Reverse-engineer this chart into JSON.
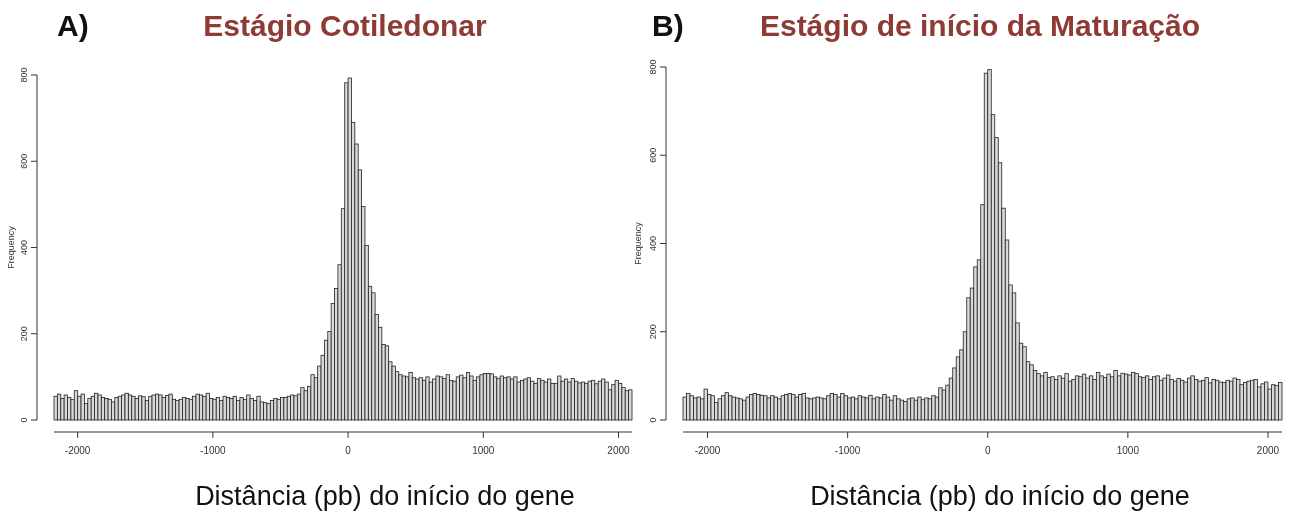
{
  "chart_data": [
    {
      "type": "histogram",
      "title": "Estágio Cotiledonar",
      "annotations": [
        "A)"
      ],
      "xlabel": "Distância (pb) do início do gene",
      "ylabel": "Frequency",
      "color": "#d9d9d9",
      "xlim": [
        -2175,
        2100
      ],
      "ylim": [
        0,
        800
      ],
      "xticks": [
        -2000,
        -1000,
        0,
        1000,
        2000
      ],
      "yticks": [
        0,
        200,
        400,
        600,
        800
      ],
      "bins": [
        -2175,
        -2150,
        -2125,
        -2100,
        -2075,
        -2050,
        -2025,
        -2000,
        -1975,
        -1950,
        -1925,
        -1900,
        -1875,
        -1850,
        -1825,
        -1800,
        -1775,
        -1750,
        -1725,
        -1700,
        -1675,
        -1650,
        -1625,
        -1600,
        -1575,
        -1550,
        -1525,
        -1500,
        -1475,
        -1450,
        -1425,
        -1400,
        -1375,
        -1350,
        -1325,
        -1300,
        -1275,
        -1250,
        -1225,
        -1200,
        -1175,
        -1150,
        -1125,
        -1100,
        -1075,
        -1050,
        -1025,
        -1000,
        -975,
        -950,
        -925,
        -900,
        -875,
        -850,
        -825,
        -800,
        -775,
        -750,
        -725,
        -700,
        -675,
        -650,
        -625,
        -600,
        -575,
        -550,
        -525,
        -500,
        -475,
        -450,
        -425,
        -400,
        -375,
        -350,
        -325,
        -300,
        -275,
        -250,
        -225,
        -200,
        -175,
        -150,
        -125,
        -100,
        -75,
        -50,
        -25,
        0,
        25,
        50,
        75,
        100,
        125,
        150,
        175,
        200,
        225,
        250,
        275,
        300,
        325,
        350,
        375,
        400,
        425,
        450,
        475,
        500,
        525,
        550,
        575,
        600,
        625,
        650,
        675,
        700,
        725,
        750,
        775,
        800,
        825,
        850,
        875,
        900,
        925,
        950,
        975,
        1000,
        1025,
        1050,
        1075,
        1100,
        1125,
        1150,
        1175,
        1200,
        1225,
        1250,
        1275,
        1300,
        1325,
        1350,
        1375,
        1400,
        1425,
        1450,
        1475,
        1500,
        1525,
        1550,
        1575,
        1600,
        1625,
        1650,
        1675,
        1700,
        1725,
        1750,
        1775,
        1800,
        1825,
        1850,
        1875,
        1900,
        1925,
        1950,
        1975,
        2000,
        2025,
        2050,
        2075,
        2100
      ],
      "values": [
        55,
        60,
        50,
        58,
        52,
        48,
        68,
        55,
        60,
        38,
        50,
        55,
        62,
        58,
        52,
        50,
        48,
        42,
        52,
        55,
        58,
        62,
        58,
        55,
        50,
        56,
        54,
        45,
        55,
        58,
        60,
        58,
        52,
        57,
        60,
        48,
        45,
        48,
        52,
        50,
        48,
        55,
        60,
        58,
        55,
        62,
        50,
        48,
        52,
        45,
        55,
        52,
        50,
        55,
        45,
        52,
        48,
        58,
        50,
        45,
        55,
        42,
        40,
        38,
        45,
        50,
        48,
        52,
        52,
        55,
        58,
        56,
        60,
        75,
        68,
        78,
        105,
        98,
        125,
        150,
        185,
        205,
        270,
        305,
        360,
        490,
        782,
        793,
        690,
        640,
        580,
        495,
        405,
        310,
        295,
        245,
        215,
        175,
        172,
        135,
        125,
        112,
        105,
        102,
        100,
        110,
        98,
        95,
        98,
        92,
        100,
        88,
        95,
        102,
        100,
        96,
        105,
        92,
        90,
        100,
        104,
        98,
        110,
        102,
        92,
        100,
        105,
        108,
        108,
        107,
        100,
        96,
        102,
        98,
        100,
        95,
        100,
        88,
        92,
        95,
        98,
        90,
        85,
        96,
        92,
        88,
        95,
        85,
        85,
        102,
        90,
        95,
        88,
        96,
        90,
        86,
        88,
        85,
        90,
        92,
        84,
        90,
        95,
        88,
        70,
        82,
        92,
        85,
        75,
        68,
        70
      ]
    },
    {
      "type": "histogram",
      "title": "Estágio de início da Maturação",
      "annotations": [
        "B)"
      ],
      "xlabel": "Distância (pb) do início do gene",
      "ylabel": "Frequency",
      "color": "#d9d9d9",
      "xlim": [
        -2175,
        2100
      ],
      "ylim": [
        0,
        800
      ],
      "xticks": [
        -2000,
        -1000,
        0,
        1000,
        2000
      ],
      "yticks": [
        0,
        200,
        400,
        600,
        800
      ],
      "bins": [
        -2175,
        -2150,
        -2125,
        -2100,
        -2075,
        -2050,
        -2025,
        -2000,
        -1975,
        -1950,
        -1925,
        -1900,
        -1875,
        -1850,
        -1825,
        -1800,
        -1775,
        -1750,
        -1725,
        -1700,
        -1675,
        -1650,
        -1625,
        -1600,
        -1575,
        -1550,
        -1525,
        -1500,
        -1475,
        -1450,
        -1425,
        -1400,
        -1375,
        -1350,
        -1325,
        -1300,
        -1275,
        -1250,
        -1225,
        -1200,
        -1175,
        -1150,
        -1125,
        -1100,
        -1075,
        -1050,
        -1025,
        -1000,
        -975,
        -950,
        -925,
        -900,
        -875,
        -850,
        -825,
        -800,
        -775,
        -750,
        -725,
        -700,
        -675,
        -650,
        -625,
        -600,
        -575,
        -550,
        -525,
        -500,
        -475,
        -450,
        -425,
        -400,
        -375,
        -350,
        -325,
        -300,
        -275,
        -250,
        -225,
        -200,
        -175,
        -150,
        -125,
        -100,
        -75,
        -50,
        -25,
        0,
        25,
        50,
        75,
        100,
        125,
        150,
        175,
        200,
        225,
        250,
        275,
        300,
        325,
        350,
        375,
        400,
        425,
        450,
        475,
        500,
        525,
        550,
        575,
        600,
        625,
        650,
        675,
        700,
        725,
        750,
        775,
        800,
        825,
        850,
        875,
        900,
        925,
        950,
        975,
        1000,
        1025,
        1050,
        1075,
        1100,
        1125,
        1150,
        1175,
        1200,
        1225,
        1250,
        1275,
        1300,
        1325,
        1350,
        1375,
        1400,
        1425,
        1450,
        1475,
        1500,
        1525,
        1550,
        1575,
        1600,
        1625,
        1650,
        1675,
        1700,
        1725,
        1750,
        1775,
        1800,
        1825,
        1850,
        1875,
        1900,
        1925,
        1950,
        1975,
        2000,
        2025,
        2050,
        2075,
        2100
      ],
      "values": [
        52,
        60,
        55,
        50,
        52,
        48,
        70,
        58,
        55,
        40,
        48,
        55,
        62,
        55,
        52,
        50,
        48,
        45,
        52,
        58,
        60,
        58,
        56,
        55,
        50,
        55,
        52,
        48,
        55,
        58,
        60,
        58,
        52,
        58,
        60,
        50,
        48,
        50,
        52,
        50,
        48,
        55,
        60,
        58,
        52,
        60,
        55,
        50,
        52,
        48,
        55,
        52,
        50,
        56,
        48,
        52,
        50,
        58,
        52,
        45,
        55,
        48,
        45,
        42,
        48,
        50,
        45,
        52,
        46,
        50,
        48,
        55,
        52,
        73,
        68,
        79,
        95,
        118,
        143,
        159,
        200,
        277,
        299,
        347,
        363,
        488,
        786,
        794,
        692,
        640,
        583,
        480,
        408,
        306,
        288,
        220,
        174,
        166,
        132,
        125,
        112,
        105,
        100,
        108,
        96,
        98,
        92,
        100,
        95,
        105,
        88,
        92,
        100,
        98,
        104,
        95,
        100,
        92,
        108,
        100,
        96,
        104,
        98,
        112,
        100,
        106,
        104,
        102,
        108,
        105,
        98,
        96,
        100,
        92,
        98,
        100,
        90,
        95,
        102,
        92,
        88,
        94,
        90,
        86,
        95,
        100,
        92,
        88,
        90,
        96,
        84,
        92,
        90,
        86,
        85,
        90,
        88,
        95,
        92,
        80,
        85,
        88,
        90,
        92,
        75,
        82,
        86,
        70,
        80,
        78,
        85
      ]
    }
  ]
}
